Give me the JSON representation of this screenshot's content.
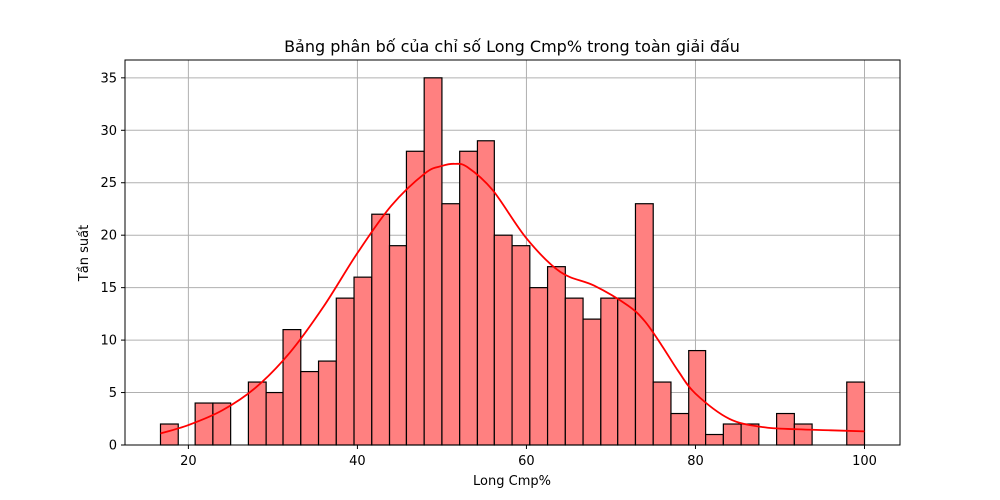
{
  "chart_data": {
    "type": "bar",
    "title": "Bảng phân bố của chỉ số Long Cmp% trong toàn giải đấu",
    "xlabel": "Long Cmp%",
    "ylabel": "Tần suất",
    "xlim": [
      12.5,
      104.2
    ],
    "ylim": [
      0,
      36.7
    ],
    "grid": true,
    "bin_width": 2.08,
    "bins": [
      {
        "start": 16.7,
        "end": 18.8,
        "count": 2
      },
      {
        "start": 18.8,
        "end": 20.8,
        "count": 0
      },
      {
        "start": 20.8,
        "end": 22.9,
        "count": 4
      },
      {
        "start": 22.9,
        "end": 25.0,
        "count": 4
      },
      {
        "start": 25.0,
        "end": 27.1,
        "count": 0
      },
      {
        "start": 27.1,
        "end": 29.2,
        "count": 6
      },
      {
        "start": 29.2,
        "end": 31.2,
        "count": 5
      },
      {
        "start": 31.2,
        "end": 33.3,
        "count": 11
      },
      {
        "start": 33.3,
        "end": 35.4,
        "count": 7
      },
      {
        "start": 35.4,
        "end": 37.5,
        "count": 8
      },
      {
        "start": 37.5,
        "end": 39.6,
        "count": 14
      },
      {
        "start": 39.6,
        "end": 41.7,
        "count": 16
      },
      {
        "start": 41.7,
        "end": 43.8,
        "count": 22
      },
      {
        "start": 43.8,
        "end": 45.8,
        "count": 19
      },
      {
        "start": 45.8,
        "end": 47.9,
        "count": 28
      },
      {
        "start": 47.9,
        "end": 50.0,
        "count": 35
      },
      {
        "start": 50.0,
        "end": 52.1,
        "count": 23
      },
      {
        "start": 52.1,
        "end": 54.2,
        "count": 28
      },
      {
        "start": 54.2,
        "end": 56.2,
        "count": 29
      },
      {
        "start": 56.2,
        "end": 58.3,
        "count": 20
      },
      {
        "start": 58.3,
        "end": 60.4,
        "count": 19
      },
      {
        "start": 60.4,
        "end": 62.5,
        "count": 15
      },
      {
        "start": 62.5,
        "end": 64.6,
        "count": 17
      },
      {
        "start": 64.6,
        "end": 66.7,
        "count": 14
      },
      {
        "start": 66.7,
        "end": 68.8,
        "count": 12
      },
      {
        "start": 68.8,
        "end": 70.8,
        "count": 14
      },
      {
        "start": 70.8,
        "end": 72.9,
        "count": 14
      },
      {
        "start": 72.9,
        "end": 75.0,
        "count": 23
      },
      {
        "start": 75.0,
        "end": 77.1,
        "count": 6
      },
      {
        "start": 77.1,
        "end": 79.2,
        "count": 3
      },
      {
        "start": 79.2,
        "end": 81.2,
        "count": 9
      },
      {
        "start": 81.2,
        "end": 83.3,
        "count": 1
      },
      {
        "start": 83.3,
        "end": 85.4,
        "count": 2
      },
      {
        "start": 85.4,
        "end": 87.5,
        "count": 2
      },
      {
        "start": 87.5,
        "end": 89.6,
        "count": 0
      },
      {
        "start": 89.6,
        "end": 91.7,
        "count": 3
      },
      {
        "start": 91.7,
        "end": 93.8,
        "count": 2
      },
      {
        "start": 93.8,
        "end": 95.8,
        "count": 0
      },
      {
        "start": 95.8,
        "end": 97.9,
        "count": 0
      },
      {
        "start": 97.9,
        "end": 100.0,
        "count": 6
      }
    ],
    "kde": {
      "x": [
        16.7,
        20,
        24,
        28,
        32,
        36,
        40,
        44,
        48,
        50,
        51.5,
        53,
        56,
        60,
        64,
        68,
        72,
        74,
        76,
        78,
        80,
        84,
        88,
        92,
        96,
        100
      ],
      "y": [
        1.1,
        1.9,
        3.3,
        5.5,
        8.8,
        13.2,
        18.3,
        22.8,
        25.9,
        26.6,
        26.8,
        26.5,
        24.3,
        19.7,
        16.5,
        15.2,
        13.3,
        11.8,
        9.5,
        7.0,
        4.9,
        2.5,
        1.7,
        1.5,
        1.4,
        1.3
      ]
    },
    "x_ticks": [
      20,
      40,
      60,
      80,
      100
    ],
    "y_ticks": [
      0,
      5,
      10,
      15,
      20,
      25,
      30,
      35
    ],
    "colors": {
      "bar_fill": "#ff8080",
      "bar_edge": "#000000",
      "kde_line": "#ff0000",
      "grid": "#b0b0b0"
    }
  }
}
